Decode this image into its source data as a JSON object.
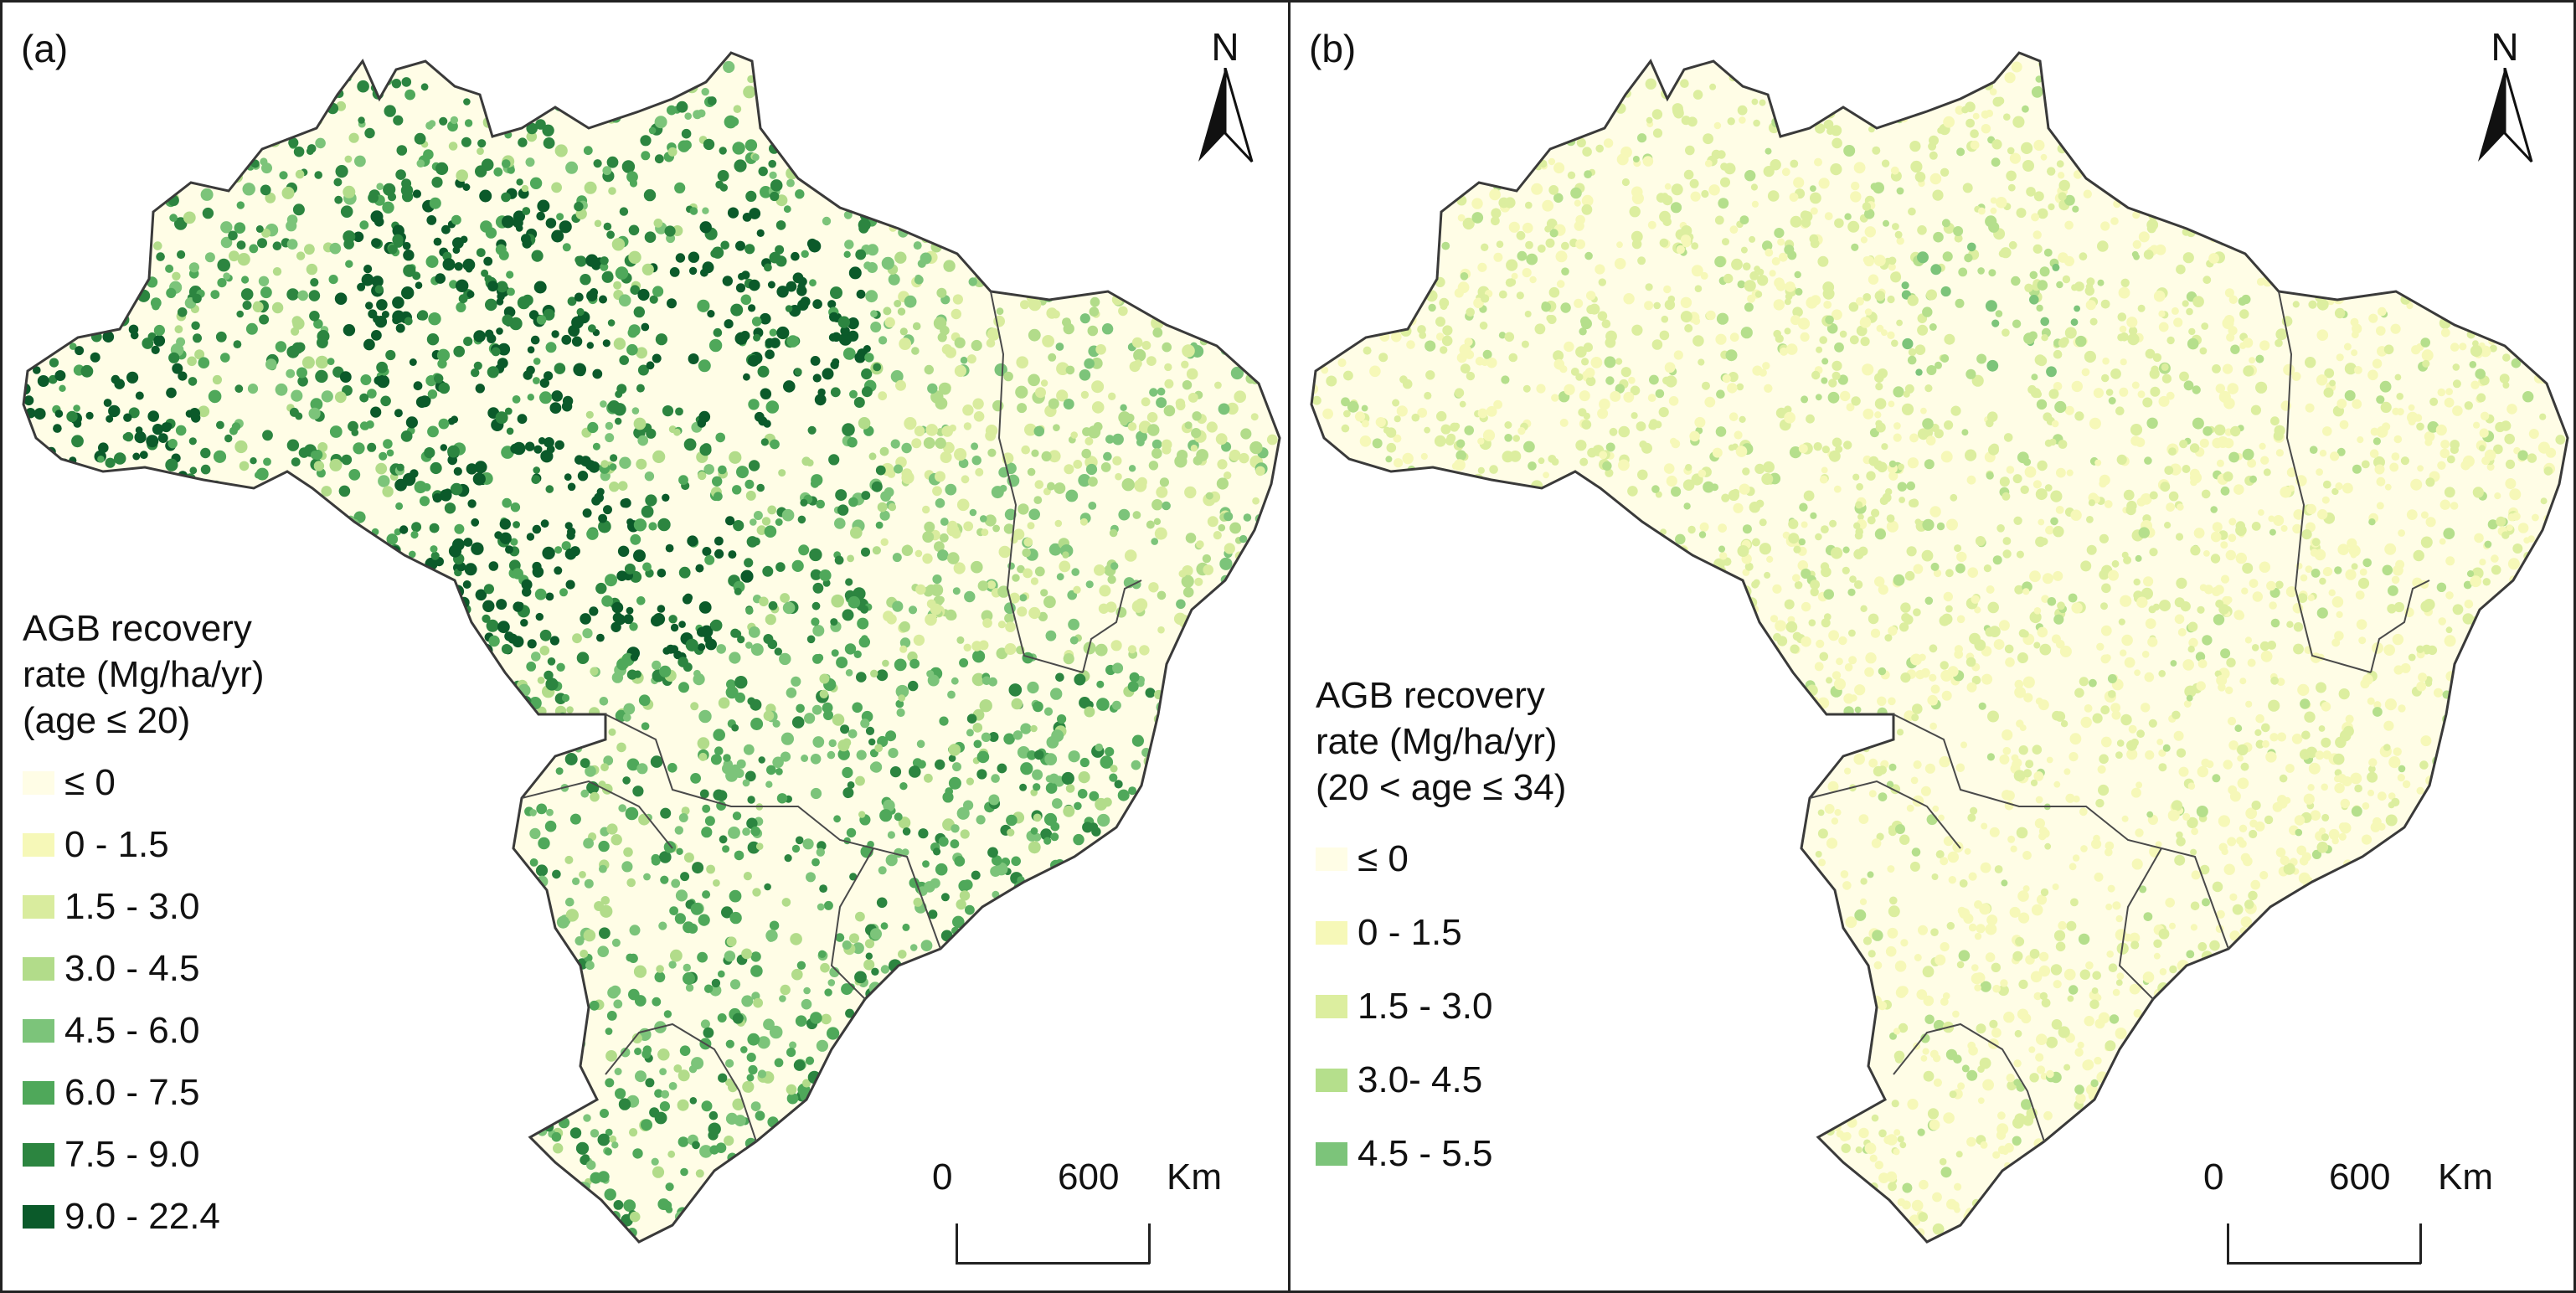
{
  "panels": [
    {
      "id": "a",
      "label": "(a)",
      "north_label": "N",
      "legend": {
        "title_lines": [
          "AGB recovery",
          "rate (Mg/ha/yr)",
          "(age ≤ 20)"
        ],
        "items": [
          {
            "label": "≤ 0",
            "color": "#fffde6"
          },
          {
            "label": "0 - 1.5",
            "color": "#f6f8b8"
          },
          {
            "label": "1.5 - 3.0",
            "color": "#d9ec9e"
          },
          {
            "label": "3.0 - 4.5",
            "color": "#b2dc8a"
          },
          {
            "label": "4.5 - 6.0",
            "color": "#7cc47a"
          },
          {
            "label": "6.0 - 7.5",
            "color": "#4fa85a"
          },
          {
            "label": "7.5 - 9.0",
            "color": "#2c8540"
          },
          {
            "label": "9.0 - 22.4",
            "color": "#0b5a2a"
          }
        ]
      },
      "scale": {
        "zero": "0",
        "max": "600",
        "unit": "Km"
      }
    },
    {
      "id": "b",
      "label": "(b)",
      "north_label": "N",
      "legend": {
        "title_lines": [
          "AGB recovery",
          "rate (Mg/ha/yr)",
          "(20 < age ≤ 34)"
        ],
        "items": [
          {
            "label": "≤ 0",
            "color": "#fffde6"
          },
          {
            "label": "0 - 1.5",
            "color": "#f6f8b8"
          },
          {
            "label": "1.5 - 3.0",
            "color": "#dcee9f"
          },
          {
            "label": "3.0- 4.5",
            "color": "#b5df8c"
          },
          {
            "label": "4.5 - 5.5",
            "color": "#7cc47a"
          }
        ]
      },
      "scale": {
        "zero": "0",
        "max": "600",
        "unit": "Km"
      }
    }
  ]
}
